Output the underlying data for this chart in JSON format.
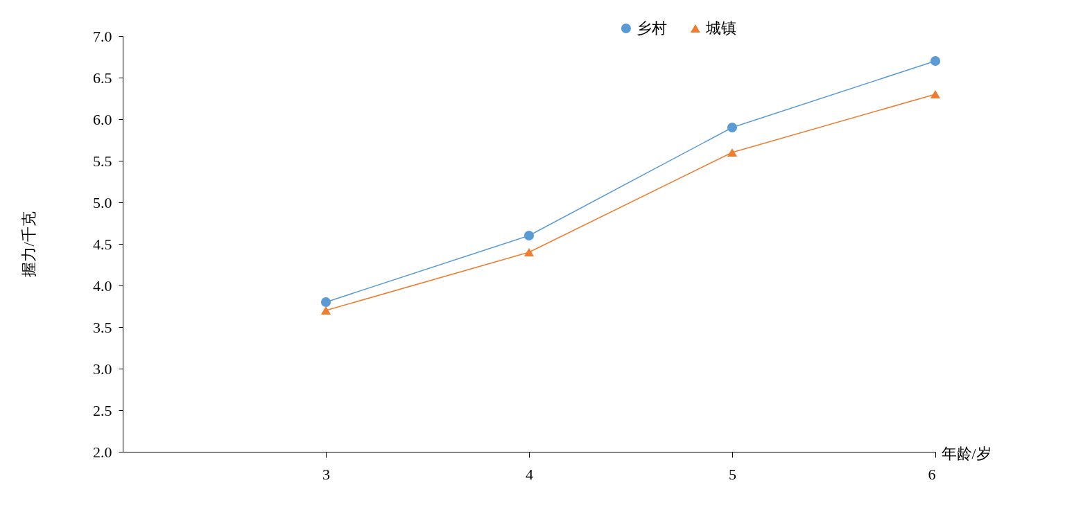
{
  "chart_data": {
    "type": "line",
    "xlabel": "年龄/岁",
    "ylabel": "握力/千克",
    "x": [
      3,
      4,
      5,
      6
    ],
    "xlim": [
      2,
      6
    ],
    "xticks": [
      3,
      4,
      5,
      6
    ],
    "ylim": [
      2,
      7
    ],
    "yticks": [
      {
        "value": 2,
        "label": "2.0"
      },
      {
        "value": 2.5,
        "label": "2.5"
      },
      {
        "value": 3,
        "label": "3.0"
      },
      {
        "value": 3.5,
        "label": "3.5"
      },
      {
        "value": 4,
        "label": "4.0"
      },
      {
        "value": 4.5,
        "label": "4.5"
      },
      {
        "value": 5,
        "label": "5.0"
      },
      {
        "value": 5.5,
        "label": "5.5"
      },
      {
        "value": 6,
        "label": "6.0"
      },
      {
        "value": 6.5,
        "label": "6.5"
      },
      {
        "value": 7,
        "label": "7.0"
      }
    ],
    "legend": "top",
    "line_style": "solid",
    "series": [
      {
        "name": "乡村",
        "color": "#5b9bd5",
        "marker": "circle",
        "values": [
          3.8,
          4.6,
          5.9,
          6.7
        ]
      },
      {
        "name": "城镇",
        "color": "#ed7d31",
        "marker": "triangle",
        "values": [
          3.7,
          4.4,
          5.6,
          6.3
        ]
      }
    ]
  }
}
